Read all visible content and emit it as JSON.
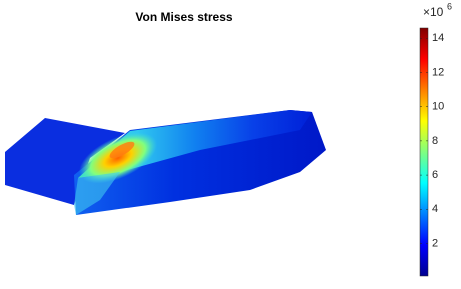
{
  "chart_data": {
    "type": "surface",
    "title": "Von Mises stress",
    "colorbar": {
      "exponent_base": "×10",
      "exponent": 6,
      "clim": [
        0.1,
        14.6
      ],
      "ticks": [
        2,
        4,
        6,
        8,
        10,
        12,
        14
      ],
      "colormap": "jet"
    }
  }
}
